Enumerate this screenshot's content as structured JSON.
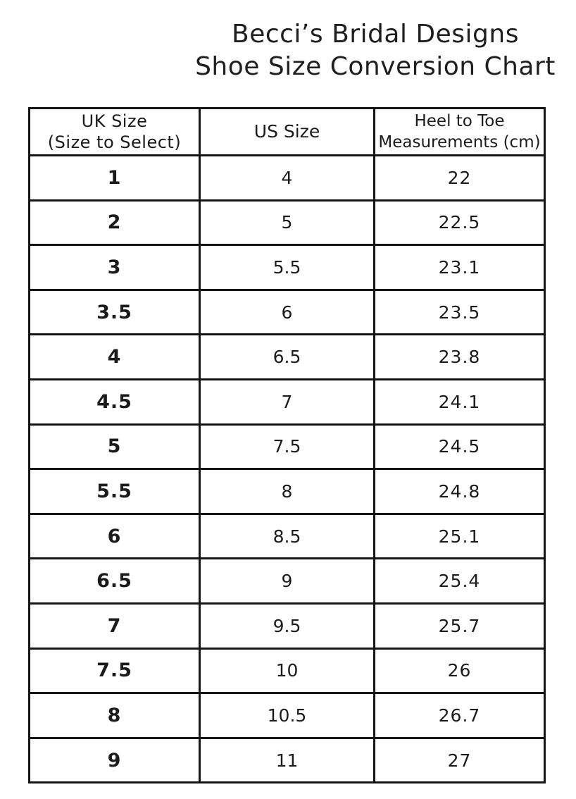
{
  "title": {
    "line1": "Becci’s Bridal Designs",
    "line2": "Shoe Size Conversion Chart"
  },
  "colors": {
    "text": "#1b1b1b",
    "border": "#161616",
    "background": "#ffffff"
  },
  "chart_data": {
    "type": "table",
    "title": "Becci’s Bridal Designs Shoe Size Conversion Chart",
    "columns": [
      "UK Size (Size to Select)",
      "US Size",
      "Heel to Toe Measurements (cm)"
    ],
    "rows": [
      [
        "1",
        "4",
        "22"
      ],
      [
        "2",
        "5",
        "22.5"
      ],
      [
        "3",
        "5.5",
        "23.1"
      ],
      [
        "3.5",
        "6",
        "23.5"
      ],
      [
        "4",
        "6.5",
        "23.8"
      ],
      [
        "4.5",
        "7",
        "24.1"
      ],
      [
        "5",
        "7.5",
        "24.5"
      ],
      [
        "5.5",
        "8",
        "24.8"
      ],
      [
        "6",
        "8.5",
        "25.1"
      ],
      [
        "6.5",
        "9",
        "25.4"
      ],
      [
        "7",
        "9.5",
        "25.7"
      ],
      [
        "7.5",
        "10",
        "26"
      ],
      [
        "8",
        "10.5",
        "26.7"
      ],
      [
        "9",
        "11",
        "27"
      ]
    ]
  },
  "table": {
    "headers": {
      "uk_line1": "UK Size",
      "uk_line2": "(Size to Select)",
      "us": "US Size",
      "cm_line1": "Heel to Toe",
      "cm_line2": "Measurements (cm)"
    },
    "rows": [
      {
        "uk": "1",
        "us": "4",
        "cm": "22"
      },
      {
        "uk": "2",
        "us": "5",
        "cm": "22.5"
      },
      {
        "uk": "3",
        "us": "5.5",
        "cm": "23.1"
      },
      {
        "uk": "3.5",
        "us": "6",
        "cm": "23.5"
      },
      {
        "uk": "4",
        "us": "6.5",
        "cm": "23.8"
      },
      {
        "uk": "4.5",
        "us": "7",
        "cm": "24.1"
      },
      {
        "uk": "5",
        "us": "7.5",
        "cm": "24.5"
      },
      {
        "uk": "5.5",
        "us": "8",
        "cm": "24.8"
      },
      {
        "uk": "6",
        "us": "8.5",
        "cm": "25.1"
      },
      {
        "uk": "6.5",
        "us": "9",
        "cm": "25.4"
      },
      {
        "uk": "7",
        "us": "9.5",
        "cm": "25.7"
      },
      {
        "uk": "7.5",
        "us": "10",
        "cm": "26"
      },
      {
        "uk": "8",
        "us": "10.5",
        "cm": "26.7"
      },
      {
        "uk": "9",
        "us": "11",
        "cm": "27"
      }
    ]
  }
}
